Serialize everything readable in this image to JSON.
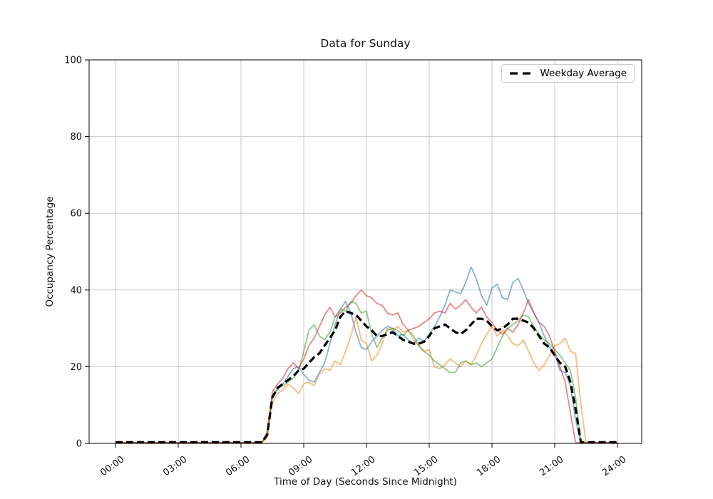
{
  "chart_data": {
    "type": "line",
    "title": "Data for Sunday",
    "xlabel": "Time of Day (Seconds Since Midnight)",
    "ylabel": "Occupancy Percentage",
    "xlim_hours": [
      -1.2,
      25.2
    ],
    "ylim": [
      0,
      100
    ],
    "grid": true,
    "y_ticks": [
      0,
      20,
      40,
      60,
      80,
      100
    ],
    "x_ticks": [
      {
        "hour": 0,
        "label": "00:00"
      },
      {
        "hour": 3,
        "label": "03:00"
      },
      {
        "hour": 6,
        "label": "06:00"
      },
      {
        "hour": 9,
        "label": "09:00"
      },
      {
        "hour": 12,
        "label": "12:00"
      },
      {
        "hour": 15,
        "label": "15:00"
      },
      {
        "hour": 18,
        "label": "18:00"
      },
      {
        "hour": 21,
        "label": "21:00"
      },
      {
        "hour": 24,
        "label": "24:00"
      }
    ],
    "legend": {
      "location": "upper right",
      "entries": [
        {
          "label": "Weekday Average",
          "color": "#000000",
          "style": "dashed"
        }
      ]
    },
    "x_start_hour": 0,
    "x_step_hours": 0.25,
    "series": [
      {
        "name": "line-1",
        "color": "#1f77b4",
        "opacity": 0.55,
        "width": 1.8,
        "dash": null,
        "values": [
          0.2,
          0.2,
          0.2,
          0.2,
          0.2,
          0.2,
          0.2,
          0.2,
          0.2,
          0.2,
          0.2,
          0.2,
          0.2,
          0.2,
          0.2,
          0.2,
          0.2,
          0.2,
          0.2,
          0.2,
          0.2,
          0.2,
          0.2,
          0.2,
          0.2,
          0.2,
          0.2,
          0.2,
          0.2,
          2,
          12.5,
          14,
          15.5,
          17.5,
          19.5,
          20,
          18,
          16.5,
          16,
          18.5,
          21,
          26,
          31,
          35,
          37,
          34,
          29,
          25,
          24.5,
          26.5,
          28,
          29.5,
          30.5,
          30,
          28,
          28.5,
          27,
          26,
          27.5,
          26.5,
          28.5,
          30.5,
          33,
          36,
          40,
          39.5,
          39,
          42,
          46,
          43,
          38.5,
          36,
          40.5,
          41.5,
          38,
          37.5,
          42,
          43,
          40,
          36.5,
          34,
          31.5,
          28,
          25,
          23.5,
          19,
          18.5,
          15,
          6,
          0.2,
          0.2,
          0.2,
          0.2,
          0.2,
          0.2,
          0.2,
          0.2
        ]
      },
      {
        "name": "line-2",
        "color": "#ff7f0e",
        "opacity": 0.55,
        "width": 1.8,
        "dash": null,
        "values": [
          0.2,
          0.2,
          0.2,
          0.2,
          0.2,
          0.2,
          0.2,
          0.2,
          0.2,
          0.2,
          0.2,
          0.2,
          0.2,
          0.2,
          0.2,
          0.2,
          0.2,
          0.2,
          0.2,
          0.2,
          0.2,
          0.2,
          0.2,
          0.2,
          0.2,
          0.2,
          0.2,
          0.2,
          0.2,
          1.5,
          10.5,
          13,
          14,
          15.5,
          14.5,
          13,
          15.5,
          16,
          15,
          18,
          19.5,
          19,
          21.5,
          20.5,
          24,
          28,
          33,
          27,
          26,
          21.5,
          23,
          26,
          30,
          29.5,
          30.5,
          29,
          29.5,
          27,
          25.5,
          24,
          24.5,
          20,
          19.5,
          20.5,
          22,
          21,
          20,
          21.5,
          20.5,
          23,
          26,
          28.5,
          30.5,
          28,
          29.5,
          28,
          26,
          25.5,
          27,
          24,
          21,
          19,
          20.5,
          23,
          25.5,
          26,
          27.5,
          24,
          23.5,
          10,
          0.2,
          0.2,
          0.2,
          0.2,
          0.2,
          0.2,
          0.2
        ]
      },
      {
        "name": "line-3",
        "color": "#2ca02c",
        "opacity": 0.55,
        "width": 1.8,
        "dash": null,
        "values": [
          0.2,
          0.2,
          0.2,
          0.2,
          0.2,
          0.2,
          0.2,
          0.2,
          0.2,
          0.2,
          0.2,
          0.2,
          0.2,
          0.2,
          0.2,
          0.2,
          0.2,
          0.2,
          0.2,
          0.2,
          0.2,
          0.2,
          0.2,
          0.2,
          0.2,
          0.2,
          0.2,
          0.2,
          0.2,
          2.5,
          12,
          14.5,
          15,
          16,
          17,
          19,
          24,
          29.5,
          31,
          28,
          27,
          29,
          33,
          35,
          34.5,
          37,
          36.5,
          34,
          34.5,
          28.5,
          25,
          27.5,
          29.5,
          30,
          29.5,
          28,
          29.5,
          28,
          25.5,
          24,
          23,
          21.5,
          20.5,
          19.5,
          18.5,
          18.5,
          21,
          21.5,
          20.5,
          21,
          20,
          21,
          22,
          25,
          28,
          30,
          31,
          32,
          33.5,
          33,
          30.5,
          28.5,
          27,
          26,
          24.5,
          23,
          21,
          19,
          12,
          0.2,
          0.2,
          0.2,
          0.2,
          0.2,
          0.2,
          0.2,
          0.2
        ]
      },
      {
        "name": "line-4",
        "color": "#d62728",
        "opacity": 0.55,
        "width": 1.8,
        "dash": null,
        "values": [
          0.2,
          0.2,
          0.2,
          0.2,
          0.2,
          0.2,
          0.2,
          0.2,
          0.2,
          0.2,
          0.2,
          0.2,
          0.2,
          0.2,
          0.2,
          0.2,
          0.2,
          0.2,
          0.2,
          0.2,
          0.2,
          0.2,
          0.2,
          0.2,
          0.2,
          0.2,
          0.2,
          0.2,
          0.2,
          3,
          13.5,
          15.5,
          17,
          19.5,
          21,
          19.5,
          22,
          25.5,
          27.5,
          30.5,
          33.5,
          35.5,
          33,
          34,
          35.5,
          36.5,
          38.5,
          40,
          38.5,
          38,
          36.5,
          36,
          34,
          33.5,
          34,
          31,
          29.5,
          30,
          30.5,
          31.5,
          32.5,
          34,
          34.5,
          34,
          36.5,
          35,
          36,
          37.5,
          35.5,
          34,
          35.5,
          33,
          31.5,
          29.5,
          28.5,
          30,
          29,
          31,
          34,
          37.5,
          34,
          31.5,
          30.5,
          28,
          24,
          20,
          16,
          8,
          0.2,
          0.2,
          0.2,
          0.2,
          0.2,
          0.2,
          0.2,
          0.2,
          0.2
        ]
      },
      {
        "name": "weekday-average",
        "color": "#000000",
        "opacity": 1,
        "width": 3.2,
        "dash": "10 5",
        "values": [
          0.3,
          0.3,
          0.3,
          0.3,
          0.3,
          0.3,
          0.3,
          0.3,
          0.3,
          0.3,
          0.3,
          0.3,
          0.3,
          0.3,
          0.3,
          0.3,
          0.3,
          0.3,
          0.3,
          0.3,
          0.3,
          0.3,
          0.3,
          0.3,
          0.3,
          0.3,
          0.3,
          0.3,
          0.3,
          2.2,
          12,
          14.5,
          15.5,
          16.5,
          17.5,
          19,
          19.5,
          21,
          22.5,
          23.5,
          25.5,
          27.5,
          29.5,
          33,
          34.5,
          34,
          33.5,
          32,
          30.5,
          29.5,
          28,
          28,
          28.5,
          29,
          28,
          27,
          26.5,
          26,
          26,
          26.5,
          28,
          30,
          30.5,
          31,
          30,
          29,
          28.5,
          29.5,
          31,
          32.5,
          32.5,
          32,
          30.5,
          29.5,
          30,
          31,
          32.5,
          32.5,
          32,
          31.5,
          30,
          28,
          26,
          25,
          23,
          21,
          20,
          16,
          9,
          0.3,
          0.3,
          0.3,
          0.3,
          0.3,
          0.3,
          0.3,
          0.3
        ]
      }
    ],
    "colors": {
      "grid": "#c9c9c9",
      "spine": "#000000",
      "background": "#ffffff"
    }
  }
}
